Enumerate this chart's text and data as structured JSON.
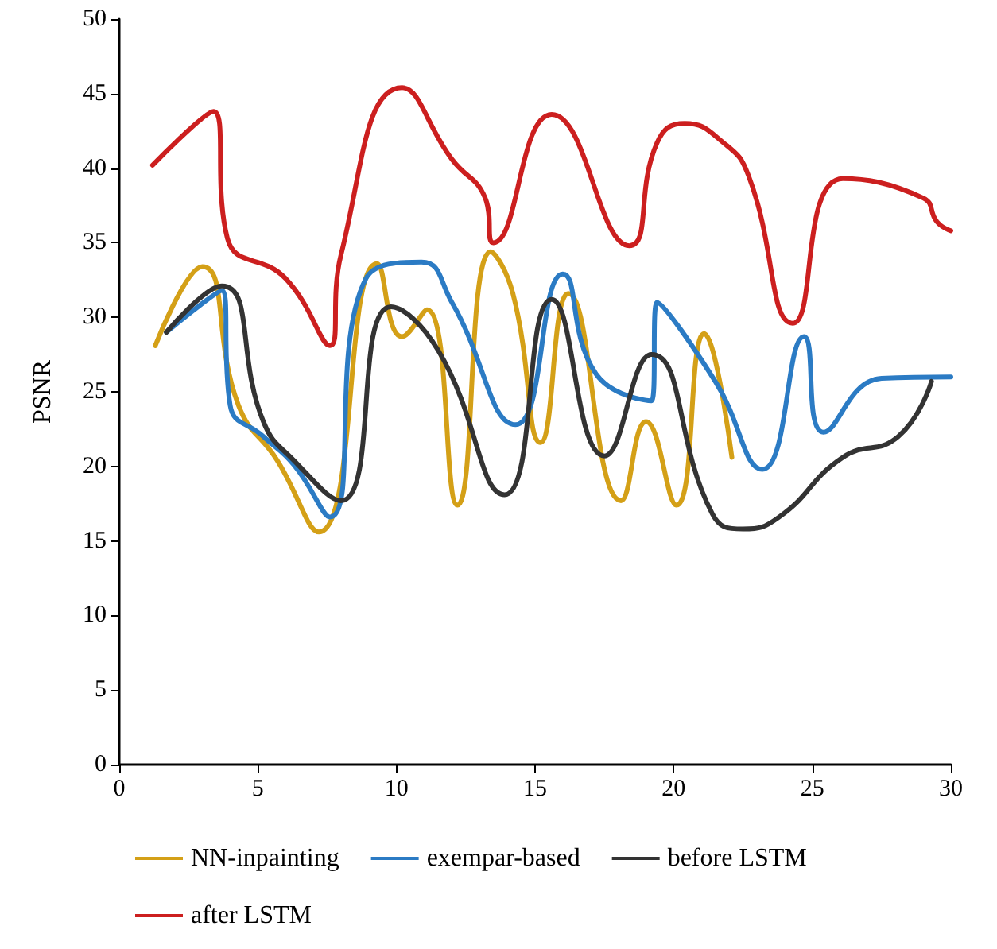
{
  "chart_data": {
    "type": "line",
    "ylabel": "PSNR",
    "xlim": [
      0,
      30
    ],
    "xticks": [
      0,
      5,
      10,
      15,
      20,
      25,
      30
    ],
    "ylim": [
      0,
      50
    ],
    "yticks": [
      0,
      5,
      10,
      15,
      20,
      25,
      30,
      35,
      40,
      45,
      50
    ],
    "grid": false,
    "legend": "bottom",
    "marker": "none",
    "line_style": "solid",
    "series": [
      {
        "name": "NN-inpainting",
        "color": "#d4a017",
        "x": [
          1.3,
          3.0,
          4.3,
          5.7,
          7.2,
          9.3,
          10.2,
          11.1,
          12.2,
          13.4,
          14.2,
          15.2,
          16.2,
          18.1,
          19.0,
          20.1,
          21.1,
          22.1
        ],
        "values": [
          28.1,
          33.4,
          24.1,
          20.4,
          15.6,
          33.6,
          28.7,
          30.5,
          17.4,
          34.4,
          31.6,
          21.6,
          31.6,
          17.7,
          23.0,
          17.4,
          28.9,
          20.6
        ]
      },
      {
        "name": "exempar-based",
        "color": "#2b7bc4",
        "x": [
          1.7,
          3.7,
          4.0,
          5.2,
          6.3,
          7.6,
          8.9,
          10.9,
          12.0,
          14.3,
          16.0,
          17.2,
          19.2,
          19.4,
          21.5,
          23.2,
          24.7,
          25.4,
          27.5,
          30.0
        ],
        "values": [
          29.0,
          31.8,
          24.1,
          22.0,
          20.1,
          16.6,
          32.6,
          33.7,
          31.0,
          22.8,
          32.9,
          26.2,
          24.4,
          31.0,
          25.7,
          19.8,
          28.7,
          22.3,
          25.9,
          26.0
        ]
      },
      {
        "name": "before LSTM",
        "color": "#333333",
        "x": [
          1.7,
          3.7,
          5.2,
          6.3,
          8.0,
          9.8,
          11.5,
          13.9,
          15.6,
          17.5,
          19.2,
          21.4,
          22.5,
          23.8,
          26.1,
          28.1,
          29.3
        ],
        "values": [
          29.0,
          32.1,
          23.0,
          20.4,
          17.7,
          30.7,
          27.8,
          18.1,
          31.2,
          20.7,
          27.5,
          16.8,
          15.8,
          16.6,
          20.6,
          22.0,
          25.7
        ]
      },
      {
        "name": "after LSTM",
        "color": "#cc1f1f",
        "x": [
          1.2,
          3.4,
          3.9,
          6.0,
          7.6,
          8.0,
          10.2,
          12.0,
          13.2,
          13.5,
          15.6,
          18.4,
          19.4,
          20.4,
          21.8,
          22.7,
          24.3,
          26.1,
          29.0,
          29.5,
          30.0
        ],
        "values": [
          40.2,
          43.8,
          35.3,
          32.6,
          28.1,
          34.2,
          45.4,
          40.6,
          38.0,
          35.0,
          43.6,
          34.8,
          41.7,
          43.0,
          41.7,
          39.5,
          29.6,
          39.3,
          38.0,
          36.4,
          35.8
        ]
      }
    ]
  }
}
